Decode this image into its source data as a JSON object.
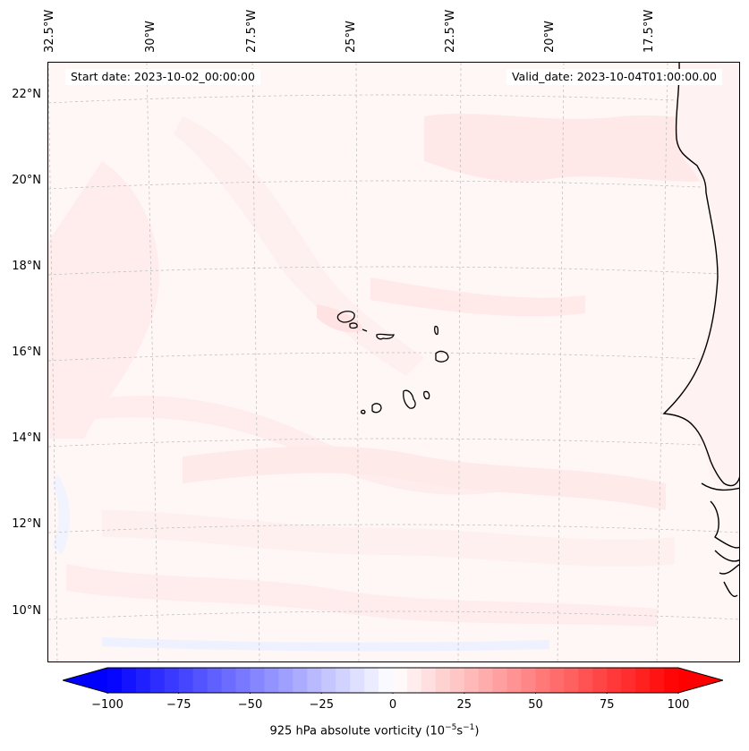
{
  "header": {
    "start_date": "Start date: 2023-10-02_00:00:00",
    "valid_date": "Valid_date: 2023-10-04T01:00:00.00"
  },
  "longitude_labels": [
    "32.5°W",
    "30°W",
    "27.5°W",
    "25°W",
    "22.5°W",
    "20°W",
    "17.5°W"
  ],
  "latitude_labels": [
    "22°N",
    "20°N",
    "18°N",
    "16°N",
    "14°N",
    "12°N",
    "10°N"
  ],
  "colorbar": {
    "min": -100,
    "max": 100,
    "tick_values": [
      -100,
      -75,
      -50,
      -25,
      0,
      25,
      50,
      75,
      100
    ],
    "tick_labels": [
      "−100",
      "−75",
      "−50",
      "−25",
      "0",
      "25",
      "50",
      "75",
      "100"
    ],
    "title_main": "925 hPa absolute vorticity (10",
    "title_exp1": "−5",
    "title_mid": "s",
    "title_exp2": "−1",
    "title_end": ")",
    "colors": {
      "negative_end": "#0000ff",
      "zero": "#ffffff",
      "positive_end": "#ff0000"
    },
    "extend": "both"
  },
  "map": {
    "projection": "lambert-conformal",
    "extent": {
      "lon_min": -33.0,
      "lon_max": -16.0,
      "lat_min": 9.0,
      "lat_max": 23.0
    },
    "gridlines": "dashed-gray",
    "coastlines": "black",
    "background_vorticity_color": "#fff5f5",
    "feature": "Cabo Verde islands, West African coast"
  }
}
